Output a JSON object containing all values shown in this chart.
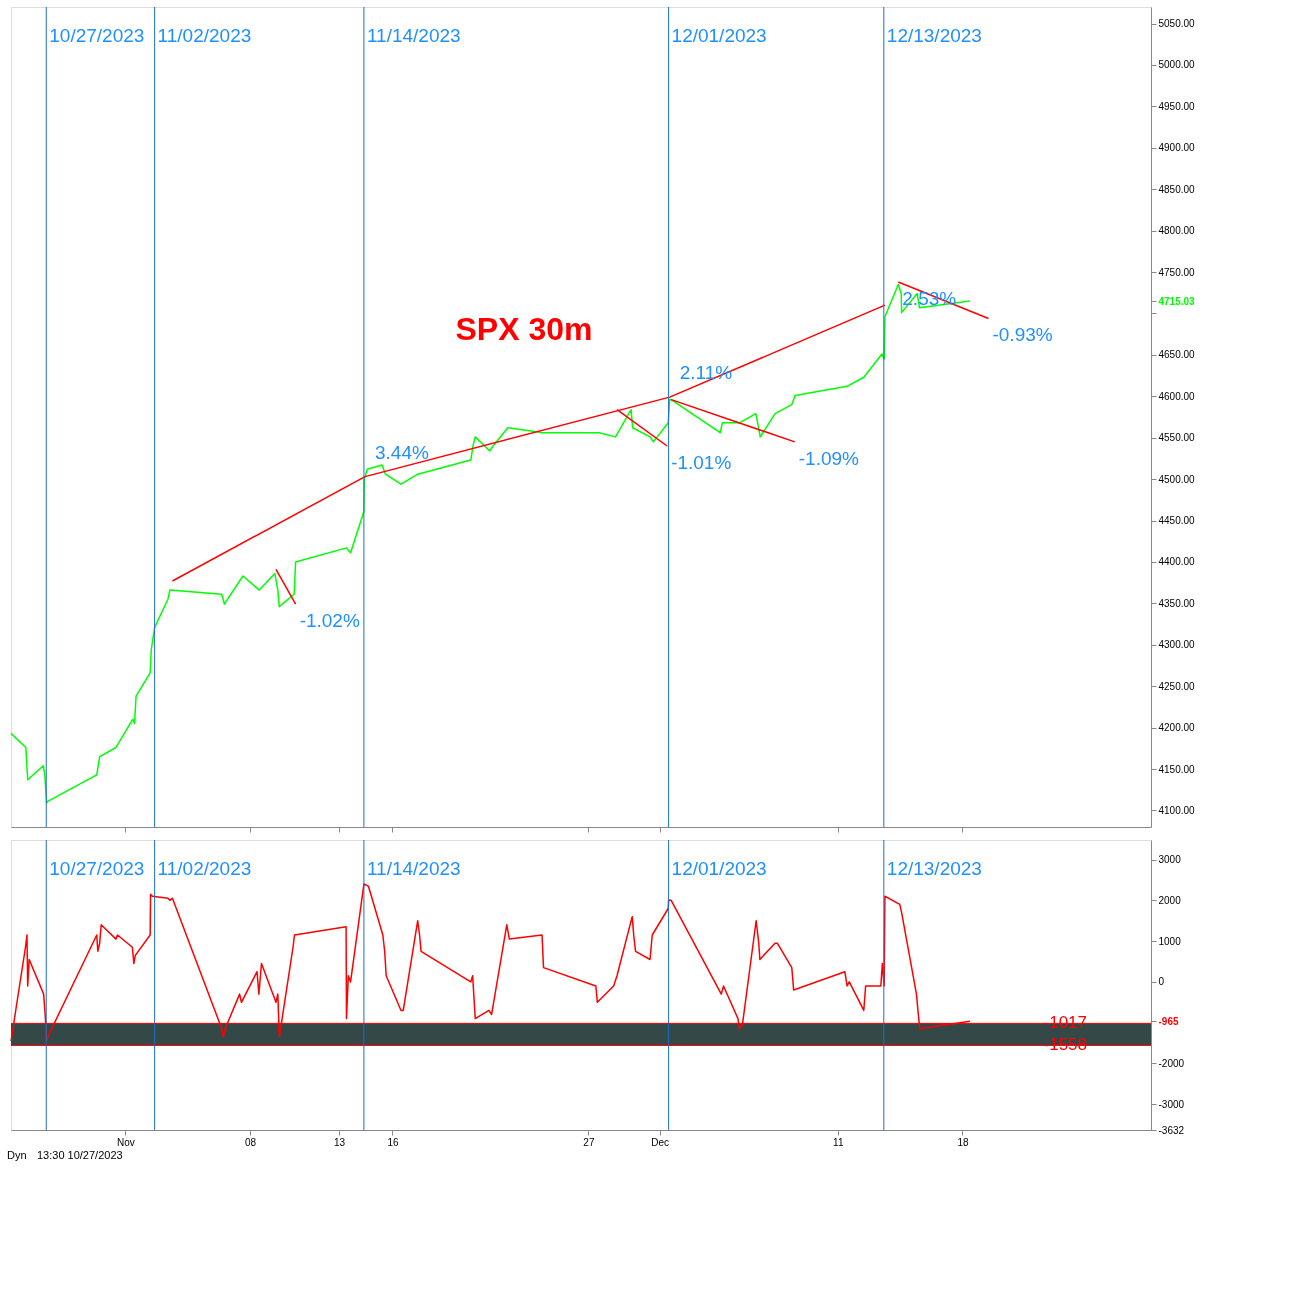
{
  "chart_data": [
    {
      "type": "line",
      "title": "SPX 30m",
      "xlim": [
        "2023-10-25T14:00",
        "2023-12-28T14:00"
      ],
      "ylim": [
        4080,
        5070
      ],
      "yticks": [
        {
          "value": 4100,
          "label": "4100.00"
        },
        {
          "value": 4150,
          "label": "4150.00"
        },
        {
          "value": 4200,
          "label": "4200.00"
        },
        {
          "value": 4250,
          "label": "4250.00"
        },
        {
          "value": 4300,
          "label": "4300.00"
        },
        {
          "value": 4350,
          "label": "4350.00"
        },
        {
          "value": 4400,
          "label": "4400.00"
        },
        {
          "value": 4450,
          "label": "4450.00"
        },
        {
          "value": 4500,
          "label": "4500.00"
        },
        {
          "value": 4550,
          "label": "4550.00"
        },
        {
          "value": 4600,
          "label": "4600.00"
        },
        {
          "value": 4650,
          "label": "4650.00"
        },
        {
          "value": 4700,
          "label": null
        },
        {
          "value": 4715.03,
          "label": "4715.03"
        },
        {
          "value": 4750,
          "label": "4750.00"
        },
        {
          "value": 4800,
          "label": "4800.00"
        },
        {
          "value": 4850,
          "label": "4850.00"
        },
        {
          "value": 4900,
          "label": "4900.00"
        },
        {
          "value": 4950,
          "label": "4950.00"
        },
        {
          "value": 5000,
          "label": "5000.00"
        },
        {
          "value": 5050,
          "label": "5050.00"
        }
      ],
      "xticks": [
        {
          "value": "2023-11-01",
          "label": null
        },
        {
          "value": "2023-11-08",
          "label": null
        },
        {
          "value": "2023-11-13",
          "label": null
        },
        {
          "value": "2023-11-16",
          "label": null
        },
        {
          "value": "2023-11-27",
          "label": null
        },
        {
          "value": "2023-12-01",
          "label": null
        },
        {
          "value": "2023-12-11",
          "label": null
        },
        {
          "value": "2023-12-18",
          "label": null
        }
      ],
      "tick_labels": "y",
      "series": [
        {
          "color": "#00ff00",
          "x": [
            "2023-10-25T14:00",
            "2023-10-26T10:00",
            "2023-10-26T12:30",
            "2023-10-27T09:30",
            "2023-10-27T11:30",
            "2023-10-27T14:00",
            "2023-10-27T15:30",
            "2023-10-30T09:30",
            "2023-10-30T13:30",
            "2023-10-31T11:30",
            "2023-11-01T10:00",
            "2023-11-01T12:30",
            "2023-11-01T14:30",
            "2023-11-02T09:30",
            "2023-11-02T11:00",
            "2023-11-02T15:30",
            "2023-11-03T09:30",
            "2023-11-03T12:00",
            "2023-11-06T10:00",
            "2023-11-06T13:30",
            "2023-11-07T10:00",
            "2023-11-07T14:30",
            "2023-11-08T12:30",
            "2023-11-09T09:30",
            "2023-11-09T13:30",
            "2023-11-09T15:30",
            "2023-11-10T11:30",
            "2023-11-10T13:30",
            "2023-11-13T10:00",
            "2023-11-13T15:30",
            "2023-11-14T09:30",
            "2023-11-14T10:00",
            "2023-11-14T14:00",
            "2023-11-15T10:00",
            "2023-11-15T14:30",
            "2023-11-16T11:30",
            "2023-11-17T10:00",
            "2023-11-20T09:30",
            "2023-11-20T12:30",
            "2023-11-20T15:30",
            "2023-11-21T11:00",
            "2023-11-21T15:30",
            "2023-11-22T11:30",
            "2023-11-24T11:00",
            "2023-11-27T14:30",
            "2023-11-28T12:30",
            "2023-11-29T09:30",
            "2023-11-29T11:30",
            "2023-11-30T11:00",
            "2023-11-30T15:30",
            "2023-12-01T11:30",
            "2023-12-01T13:30",
            "2023-12-01T15:30",
            "2023-12-04T09:30",
            "2023-12-04T12:30",
            "2023-12-05T11:30",
            "2023-12-06T09:30",
            "2023-12-06T12:00",
            "2023-12-06T15:30",
            "2023-12-07T11:30",
            "2023-12-08T10:00",
            "2023-12-08T14:30",
            "2023-12-11T12:30",
            "2023-12-12T11:00",
            "2023-12-13T11:30",
            "2023-12-13T14:30",
            "2023-12-13T15:30",
            "2023-12-14T09:30",
            "2023-12-14T13:30",
            "2023-12-14T14:00",
            "2023-12-15T11:00",
            "2023-12-15T14:00",
            "2023-12-18T10:00"
          ],
          "values": [
            4193,
            4176,
            4137,
            4154,
            4143,
            4109,
            4111,
            4143,
            4165,
            4176,
            4210,
            4205,
            4238,
            4266,
            4294,
            4321,
            4355,
            4366,
            4361,
            4349,
            4377,
            4383,
            4366,
            4386,
            4366,
            4346,
            4361,
            4400,
            4417,
            4411,
            4461,
            4500,
            4512,
            4517,
            4506,
            4494,
            4506,
            4523,
            4540,
            4551,
            4534,
            4540,
            4562,
            4556,
            4556,
            4551,
            4584,
            4562,
            4551,
            4545,
            4568,
            4596,
            4596,
            4556,
            4568,
            4568,
            4579,
            4568,
            4551,
            4579,
            4590,
            4601,
            4612,
            4623,
            4651,
            4645,
            4696,
            4735,
            4724,
            4701,
            4724,
            4707,
            4715.03
          ]
        },
        {
          "type": "line",
          "color": "#ff0000",
          "x": [
            "2023-11-03T15:30",
            "2023-11-14T11:00",
            "2023-12-01T13:30",
            "2023-12-13T15:30"
          ],
          "values": [
            4377,
            4503,
            4599,
            4710
          ]
        },
        {
          "type": "line",
          "color": "#ff0000",
          "x": [
            "2023-11-09T11:00",
            "2023-11-10T13:30"
          ],
          "values": [
            4391,
            4349
          ]
        },
        {
          "type": "line",
          "color": "#ff0000",
          "x": [
            "2023-11-28T14:30",
            "2023-12-01T10:00"
          ],
          "values": [
            4584,
            4540
          ]
        },
        {
          "type": "line",
          "color": "#ff0000",
          "x": [
            "2023-12-01T15:30",
            "2023-12-08T14:00"
          ],
          "values": [
            4596,
            4545
          ]
        },
        {
          "type": "line",
          "color": "#ff0000",
          "x": [
            "2023-12-14T09:30",
            "2023-12-19T11:00"
          ],
          "values": [
            4738,
            4694
          ]
        }
      ],
      "ref_lines": [
        {
          "axis": "x",
          "value": "2023-10-27T13:30",
          "label": "10/27/2023",
          "color": "#1e6fc0"
        },
        {
          "axis": "x",
          "value": "2023-11-02T15:30",
          "label": "11/02/2023",
          "color": "#1e6fc0"
        },
        {
          "axis": "x",
          "value": "2023-11-14T09:30",
          "label": "11/14/2023",
          "color": "#1e6fc0"
        },
        {
          "axis": "x",
          "value": "2023-12-01T12:00",
          "label": "12/01/2023",
          "color": "#1e6fc0"
        },
        {
          "axis": "x",
          "value": "2023-12-13T14:00",
          "label": "12/13/2023",
          "color": "#1e6fc0"
        }
      ],
      "annotations": [
        {
          "text": "3.44%",
          "x": "2023-11-14T11:00",
          "y": 4503
        },
        {
          "text": "-1.02%",
          "x": "2023-11-10T13:30",
          "y": 4349
        },
        {
          "text": "2.11%",
          "x": "2023-12-01T13:30",
          "y": 4599
        },
        {
          "text": "-1.01%",
          "x": "2023-12-01T10:00",
          "y": 4540
        },
        {
          "text": "-1.09%",
          "x": "2023-12-08T14:00",
          "y": 4545
        },
        {
          "text": "2.53%",
          "x": "2023-12-14T09:30",
          "y": 4738
        },
        {
          "text": "-0.93%",
          "x": "2023-12-19T11:00",
          "y": 4694
        }
      ]
    },
    {
      "type": "line",
      "xlim": [
        "2023-10-25T14:00",
        "2023-12-28T14:00"
      ],
      "ylim": [
        -3632,
        3480
      ],
      "xticks": [
        {
          "value": "2023-11-01",
          "label": "Nov"
        },
        {
          "value": "2023-11-08",
          "label": "08"
        },
        {
          "value": "2023-11-13",
          "label": "13"
        },
        {
          "value": "2023-11-16",
          "label": "16"
        },
        {
          "value": "2023-11-27",
          "label": "27"
        },
        {
          "value": "2023-12-01",
          "label": "Dec"
        },
        {
          "value": "2023-12-11",
          "label": "11"
        },
        {
          "value": "2023-12-18",
          "label": "18"
        }
      ],
      "yticks": [
        3000,
        2000,
        1000,
        0,
        -965,
        -2000,
        -3000,
        -3632
      ],
      "series": [
        {
          "color": "#ff0000",
          "x": [
            "2023-10-25T14:00",
            "2023-10-26T09:30",
            "2023-10-26T11:30",
            "2023-10-26T12:30",
            "2023-10-26T14:30",
            "2023-10-27T10:00",
            "2023-10-27T12:00",
            "2023-10-27T14:00",
            "2023-10-27T15:30",
            "2023-10-30T09:30",
            "2023-10-30T11:00",
            "2023-10-30T13:30",
            "2023-10-30T15:30",
            "2023-10-31T11:30",
            "2023-10-31T13:30",
            "2023-11-01T09:30",
            "2023-11-01T11:30",
            "2023-11-01T13:30",
            "2023-11-02T09:30",
            "2023-11-02T10:00",
            "2023-11-02T12:30",
            "2023-11-03T09:30",
            "2023-11-03T12:00",
            "2023-11-03T15:30",
            "2023-11-06T10:00",
            "2023-11-06T12:00",
            "2023-11-06T14:30",
            "2023-11-07T10:00",
            "2023-11-07T12:30",
            "2023-11-08T09:30",
            "2023-11-08T12:00",
            "2023-11-08T15:30",
            "2023-11-09T11:00",
            "2023-11-09T13:30",
            "2023-11-09T15:30",
            "2023-11-10T10:00",
            "2023-11-10T12:00",
            "2023-11-13T09:30",
            "2023-11-13T10:00",
            "2023-11-13T12:30",
            "2023-11-13T15:30",
            "2023-11-14T09:30",
            "2023-11-14T15:30",
            "2023-11-15T11:00",
            "2023-11-15T13:30",
            "2023-11-15T15:30",
            "2023-11-16T11:30",
            "2023-11-16T14:30",
            "2023-11-17T10:00",
            "2023-11-17T12:30",
            "2023-11-17T14:30",
            "2023-11-20T09:30",
            "2023-11-20T12:00",
            "2023-11-20T15:30",
            "2023-11-21T10:00",
            "2023-11-21T13:30",
            "2023-11-22T10:00",
            "2023-11-22T13:30",
            "2023-11-24T09:30",
            "2023-11-24T11:30",
            "2023-11-27T10:00",
            "2023-11-27T12:00",
            "2023-11-28T10:00",
            "2023-11-28T14:30",
            "2023-11-29T11:00",
            "2023-11-29T13:00",
            "2023-11-29T15:30",
            "2023-11-30T11:00",
            "2023-11-30T14:00",
            "2023-12-01T11:30",
            "2023-12-01T12:00",
            "2023-12-01T15:30",
            "2023-12-04T11:00",
            "2023-12-04T14:00",
            "2023-12-05T09:30",
            "2023-12-05T11:30",
            "2023-12-05T15:30",
            "2023-12-06T10:00",
            "2023-12-06T13:30",
            "2023-12-06T15:00",
            "2023-12-07T11:30",
            "2023-12-07T14:30",
            "2023-12-08T10:00",
            "2023-12-08T12:30",
            "2023-12-11T09:30",
            "2023-12-11T12:30",
            "2023-12-11T15:30",
            "2023-12-12T11:00",
            "2023-12-12T13:30",
            "2023-12-13T10:00",
            "2023-12-13T12:00",
            "2023-12-13T14:30",
            "2023-12-13T15:30",
            "2023-12-14T11:30",
            "2023-12-14T14:00",
            "2023-12-15T10:00",
            "2023-12-15T12:30",
            "2023-12-15T14:30",
            "2023-12-18T10:00"
          ],
          "values": [
            -1450,
            850,
            1150,
            -100,
            550,
            -300,
            -800,
            -1450,
            -1350,
            1150,
            750,
            950,
            1400,
            1050,
            1150,
            850,
            450,
            650,
            1150,
            2150,
            2100,
            2050,
            2000,
            2050,
            -1150,
            -1350,
            -1150,
            -300,
            -500,
            250,
            -300,
            450,
            -500,
            -300,
            -1350,
            850,
            1150,
            1350,
            -900,
            150,
            0,
            2400,
            2350,
            1150,
            750,
            150,
            -700,
            -700,
            1500,
            1150,
            750,
            0,
            150,
            -900,
            -700,
            -800,
            1400,
            1050,
            1150,
            350,
            -100,
            -500,
            -100,
            150,
            1600,
            1150,
            750,
            550,
            1150,
            1800,
            2000,
            2000,
            -300,
            -100,
            -900,
            -1150,
            -1050,
            1500,
            950,
            550,
            950,
            950,
            350,
            -200,
            250,
            -100,
            0,
            -700,
            -100,
            -100,
            450,
            -100,
            2100,
            1900,
            1700,
            -300,
            -800,
            -1150,
            -965
          ]
        }
      ],
      "bands": [
        {
          "axis": "y",
          "from": -1558,
          "to": -1017,
          "color": "#344848"
        }
      ],
      "ref_lines": [
        {
          "axis": "x",
          "value": "2023-10-27T13:30",
          "label": "10/27/2023",
          "color": "#1e6fc0"
        },
        {
          "axis": "x",
          "value": "2023-11-02T15:30",
          "label": "11/02/2023",
          "color": "#1e6fc0"
        },
        {
          "axis": "x",
          "value": "2023-11-14T09:30",
          "label": "11/14/2023",
          "color": "#1e6fc0"
        },
        {
          "axis": "x",
          "value": "2023-12-01T12:00",
          "label": "12/01/2023",
          "color": "#1e6fc0"
        },
        {
          "axis": "x",
          "value": "2023-12-13T14:00",
          "label": "12/13/2023",
          "color": "#1e6fc0"
        },
        {
          "axis": "y",
          "value": -1017,
          "label": "-1017",
          "color": "#ff0000"
        },
        {
          "axis": "y",
          "value": -1558,
          "label": "-1558",
          "color": "#ff0000"
        }
      ],
      "annotations": [
        "Dyn",
        "13:30 10/27/2023"
      ]
    }
  ]
}
